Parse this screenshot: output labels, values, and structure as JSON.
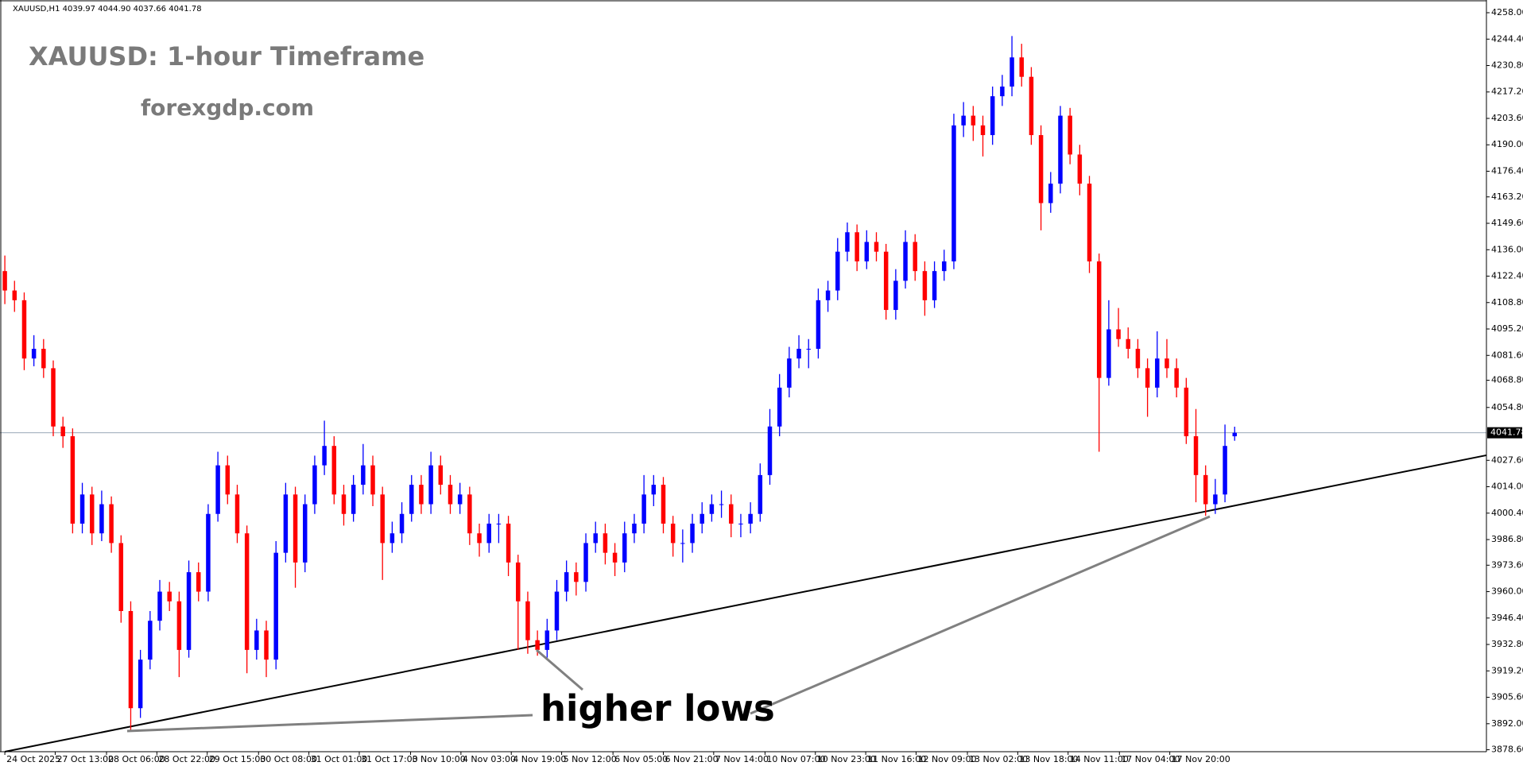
{
  "chart_data": {
    "type": "candlestick",
    "header": "XAUUSD,H1  4039.97 4044.90 4037.66 4041.78",
    "title": "XAUUSD: 1-hour Timeframe",
    "subtitle": "forexgdp.com",
    "annotation": "higher lows",
    "up_color": "#0000ff",
    "down_color": "#ff0000",
    "current_price": 4041.78,
    "price_line_color": "#9aa8b8",
    "trendline": {
      "x": [
        0,
        153
      ],
      "y": [
        3877.6,
        4030.2
      ],
      "color": "#000000"
    },
    "xlim": [
      -0.5,
      153
    ],
    "ylim": [
      3877.6,
      4262.5
    ],
    "xticks": [
      {
        "value": 0,
        "label": "24 Oct 2025"
      },
      {
        "value": 5.2,
        "label": "27 Oct 13:00"
      },
      {
        "value": 10.5,
        "label": "28 Oct 06:00"
      },
      {
        "value": 15.7,
        "label": "28 Oct 22:00"
      },
      {
        "value": 20.9,
        "label": "29 Oct 15:00"
      },
      {
        "value": 26.2,
        "label": "30 Oct 08:00"
      },
      {
        "value": 31.4,
        "label": "31 Oct 01:00"
      },
      {
        "value": 36.6,
        "label": "31 Oct 17:00"
      },
      {
        "value": 41.9,
        "label": "3 Nov 10:00"
      },
      {
        "value": 47.1,
        "label": "4 Nov 03:00"
      },
      {
        "value": 52.3,
        "label": "4 Nov 19:00"
      },
      {
        "value": 57.5,
        "label": "5 Nov 12:00"
      },
      {
        "value": 62.8,
        "label": "6 Nov 05:00"
      },
      {
        "value": 68.0,
        "label": "6 Nov 21:00"
      },
      {
        "value": 73.2,
        "label": "7 Nov 14:00"
      },
      {
        "value": 78.5,
        "label": "10 Nov 07:00"
      },
      {
        "value": 83.7,
        "label": "10 Nov 23:00"
      },
      {
        "value": 88.9,
        "label": "11 Nov 16:00"
      },
      {
        "value": 94.1,
        "label": "12 Nov 09:00"
      },
      {
        "value": 99.4,
        "label": "13 Nov 02:00"
      },
      {
        "value": 104.6,
        "label": "13 Nov 18:00"
      },
      {
        "value": 109.8,
        "label": "14 Nov 11:00"
      },
      {
        "value": 115.1,
        "label": "17 Nov 04:00"
      },
      {
        "value": 120.3,
        "label": "17 Nov 20:00"
      }
    ],
    "yticks": [
      {
        "value": 4258,
        "label": "4258.00"
      },
      {
        "value": 4244.4,
        "label": "4244.40"
      },
      {
        "value": 4230.8,
        "label": "4230.80"
      },
      {
        "value": 4217.2,
        "label": "4217.20"
      },
      {
        "value": 4203.6,
        "label": "4203.60"
      },
      {
        "value": 4190,
        "label": "4190.00"
      },
      {
        "value": 4176.4,
        "label": "4176.40"
      },
      {
        "value": 4163.2,
        "label": "4163.20"
      },
      {
        "value": 4149.6,
        "label": "4149.60"
      },
      {
        "value": 4136,
        "label": "4136.00"
      },
      {
        "value": 4122.4,
        "label": "4122.40"
      },
      {
        "value": 4108.8,
        "label": "4108.80"
      },
      {
        "value": 4095.2,
        "label": "4095.20"
      },
      {
        "value": 4081.6,
        "label": "4081.60"
      },
      {
        "value": 4068.8,
        "label": "4068.80"
      },
      {
        "value": 4054.8,
        "label": "4054.80"
      },
      {
        "value": 4027.6,
        "label": "4027.60"
      },
      {
        "value": 4014,
        "label": "4014.00"
      },
      {
        "value": 4000.4,
        "label": "4000.40"
      },
      {
        "value": 3986.8,
        "label": "3986.80"
      },
      {
        "value": 3973.6,
        "label": "3973.60"
      },
      {
        "value": 3960,
        "label": "3960.00"
      },
      {
        "value": 3946.4,
        "label": "3946.40"
      },
      {
        "value": 3932.8,
        "label": "3932.80"
      },
      {
        "value": 3919.2,
        "label": "3919.20"
      },
      {
        "value": 3905.6,
        "label": "3905.60"
      },
      {
        "value": 3892,
        "label": "3892.00"
      },
      {
        "value": 3878.6,
        "label": "3878.60"
      }
    ],
    "ohlc": [
      [
        4125,
        4133,
        4108,
        4115
      ],
      [
        4115,
        4120,
        4104,
        4110
      ],
      [
        4110,
        4114,
        4074,
        4080
      ],
      [
        4080,
        4092,
        4076,
        4085
      ],
      [
        4085,
        4090,
        4070,
        4075
      ],
      [
        4075,
        4079,
        4040,
        4045
      ],
      [
        4045,
        4050,
        4034,
        4040
      ],
      [
        4040,
        4044,
        3990,
        3995
      ],
      [
        3995,
        4016,
        3990,
        4010
      ],
      [
        4010,
        4014,
        3984,
        3990
      ],
      [
        3990,
        4012,
        3986,
        4005
      ],
      [
        4005,
        4009,
        3980,
        3985
      ],
      [
        3985,
        3989,
        3944,
        3950
      ],
      [
        3950,
        3955,
        3888,
        3900
      ],
      [
        3900,
        3930,
        3895,
        3925
      ],
      [
        3925,
        3950,
        3920,
        3945
      ],
      [
        3945,
        3966,
        3940,
        3960
      ],
      [
        3960,
        3965,
        3950,
        3955
      ],
      [
        3955,
        3960,
        3916,
        3930
      ],
      [
        3930,
        3976,
        3926,
        3970
      ],
      [
        3970,
        3975,
        3955,
        3960
      ],
      [
        3960,
        4005,
        3955,
        4000
      ],
      [
        4000,
        4032,
        3996,
        4025
      ],
      [
        4025,
        4030,
        4005,
        4010
      ],
      [
        4010,
        4015,
        3985,
        3990
      ],
      [
        3990,
        3994,
        3918,
        3930
      ],
      [
        3930,
        3946,
        3925,
        3940
      ],
      [
        3940,
        3945,
        3916,
        3925
      ],
      [
        3925,
        3986,
        3920,
        3980
      ],
      [
        3980,
        4016,
        3975,
        4010
      ],
      [
        4010,
        4014,
        3962,
        3975
      ],
      [
        3975,
        4010,
        3970,
        4005
      ],
      [
        4005,
        4030,
        4000,
        4025
      ],
      [
        4025,
        4048,
        4020,
        4035
      ],
      [
        4035,
        4040,
        4005,
        4010
      ],
      [
        4010,
        4015,
        3994,
        4000
      ],
      [
        4000,
        4020,
        3996,
        4015
      ],
      [
        4015,
        4036,
        4010,
        4025
      ],
      [
        4025,
        4030,
        4004,
        4010
      ],
      [
        4010,
        4014,
        3966,
        3985
      ],
      [
        3985,
        3996,
        3980,
        3990
      ],
      [
        3990,
        4006,
        3985,
        4000
      ],
      [
        4000,
        4020,
        3996,
        4015
      ],
      [
        4015,
        4020,
        4000,
        4005
      ],
      [
        4005,
        4032,
        4000,
        4025
      ],
      [
        4025,
        4030,
        4010,
        4015
      ],
      [
        4015,
        4020,
        4000,
        4005
      ],
      [
        4005,
        4016,
        4000,
        4010
      ],
      [
        4010,
        4014,
        3984,
        3990
      ],
      [
        3990,
        3995,
        3978,
        3985
      ],
      [
        3985,
        4000,
        3980,
        3995
      ],
      [
        3995,
        4000,
        3985,
        3995
      ],
      [
        3995,
        3999,
        3968,
        3975
      ],
      [
        3975,
        3979,
        3930,
        3955
      ],
      [
        3955,
        3960,
        3928,
        3935
      ],
      [
        3935,
        3940,
        3927,
        3930
      ],
      [
        3930,
        3946,
        3926,
        3940
      ],
      [
        3940,
        3966,
        3935,
        3960
      ],
      [
        3960,
        3976,
        3955,
        3970
      ],
      [
        3970,
        3975,
        3958,
        3965
      ],
      [
        3965,
        3990,
        3960,
        3985
      ],
      [
        3985,
        3996,
        3980,
        3990
      ],
      [
        3990,
        3995,
        3974,
        3980
      ],
      [
        3980,
        3985,
        3968,
        3975
      ],
      [
        3975,
        3996,
        3970,
        3990
      ],
      [
        3990,
        4000,
        3985,
        3995
      ],
      [
        3995,
        4020,
        3990,
        4010
      ],
      [
        4010,
        4020,
        4004,
        4015
      ],
      [
        4015,
        4019,
        3990,
        3995
      ],
      [
        3995,
        3999,
        3978,
        3985
      ],
      [
        3985,
        3992,
        3975,
        3985
      ],
      [
        3985,
        4000,
        3980,
        3995
      ],
      [
        3995,
        4006,
        3990,
        4000
      ],
      [
        4000,
        4010,
        3996,
        4005
      ],
      [
        4005,
        4012,
        3998,
        4005
      ],
      [
        4005,
        4010,
        3988,
        3995
      ],
      [
        3995,
        4000,
        3988,
        3995
      ],
      [
        3995,
        4006,
        3990,
        4000
      ],
      [
        4000,
        4026,
        3996,
        4020
      ],
      [
        4020,
        4054,
        4015,
        4045
      ],
      [
        4045,
        4072,
        4040,
        4065
      ],
      [
        4065,
        4086,
        4060,
        4080
      ],
      [
        4080,
        4092,
        4075,
        4085
      ],
      [
        4085,
        4090,
        4075,
        4085
      ],
      [
        4085,
        4116,
        4080,
        4110
      ],
      [
        4110,
        4120,
        4104,
        4115
      ],
      [
        4115,
        4142,
        4110,
        4135
      ],
      [
        4135,
        4150,
        4130,
        4145
      ],
      [
        4145,
        4149,
        4125,
        4130
      ],
      [
        4130,
        4146,
        4126,
        4140
      ],
      [
        4140,
        4145,
        4130,
        4135
      ],
      [
        4135,
        4139,
        4100,
        4105
      ],
      [
        4105,
        4126,
        4100,
        4120
      ],
      [
        4120,
        4146,
        4116,
        4140
      ],
      [
        4140,
        4144,
        4120,
        4125
      ],
      [
        4125,
        4130,
        4102,
        4110
      ],
      [
        4110,
        4130,
        4106,
        4125
      ],
      [
        4125,
        4136,
        4120,
        4130
      ],
      [
        4130,
        4206,
        4126,
        4200
      ],
      [
        4200,
        4212,
        4194,
        4205
      ],
      [
        4205,
        4210,
        4192,
        4200
      ],
      [
        4200,
        4205,
        4184,
        4195
      ],
      [
        4195,
        4220,
        4190,
        4215
      ],
      [
        4215,
        4226,
        4210,
        4220
      ],
      [
        4220,
        4246,
        4215,
        4235
      ],
      [
        4235,
        4242,
        4220,
        4225
      ],
      [
        4225,
        4230,
        4190,
        4195
      ],
      [
        4195,
        4200,
        4146,
        4160
      ],
      [
        4160,
        4176,
        4155,
        4170
      ],
      [
        4170,
        4210,
        4165,
        4205
      ],
      [
        4205,
        4209,
        4180,
        4185
      ],
      [
        4185,
        4190,
        4164,
        4170
      ],
      [
        4170,
        4174,
        4124,
        4130
      ],
      [
        4130,
        4134,
        4032,
        4070
      ],
      [
        4070,
        4110,
        4066,
        4095
      ],
      [
        4095,
        4106,
        4086,
        4090
      ],
      [
        4090,
        4096,
        4080,
        4085
      ],
      [
        4085,
        4090,
        4070,
        4075
      ],
      [
        4075,
        4080,
        4050,
        4065
      ],
      [
        4065,
        4094,
        4060,
        4080
      ],
      [
        4080,
        4090,
        4070,
        4075
      ],
      [
        4075,
        4080,
        4060,
        4065
      ],
      [
        4065,
        4070,
        4036,
        4040
      ],
      [
        4040,
        4054,
        4006,
        4020
      ],
      [
        4020,
        4025,
        3999,
        4005
      ],
      [
        4005,
        4018,
        4000,
        4010
      ],
      [
        4010,
        4046,
        4006,
        4035
      ],
      [
        4039.97,
        4044.9,
        4037.66,
        4041.78
      ]
    ]
  }
}
